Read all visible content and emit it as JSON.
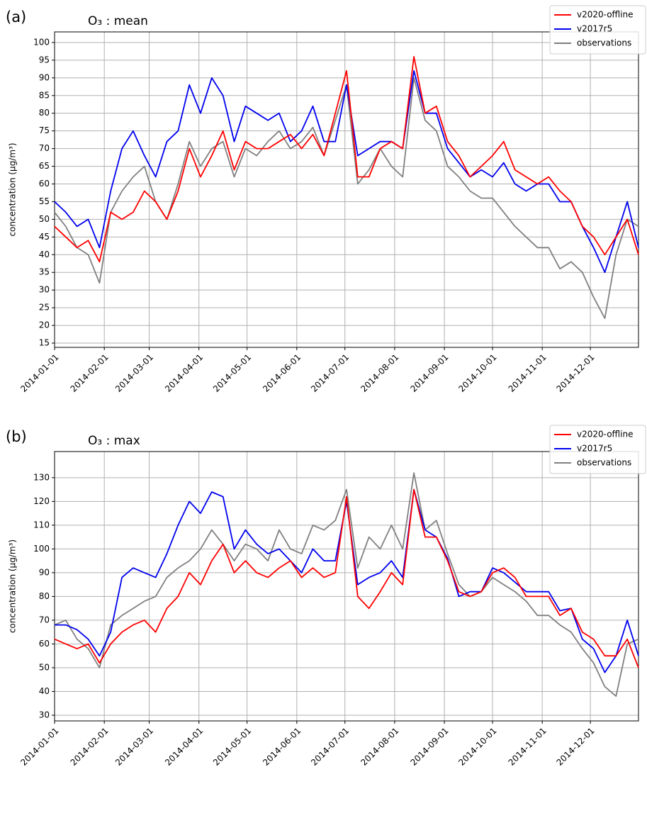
{
  "chart_data": [
    {
      "type": "line",
      "panel_label": "(a)",
      "title": "O₃ : mean",
      "y_label": "concentration (µg/m³)",
      "x": [
        "2014-01-01",
        "2014-01-08",
        "2014-01-15",
        "2014-01-22",
        "2014-01-29",
        "2014-02-05",
        "2014-02-12",
        "2014-02-19",
        "2014-02-26",
        "2014-03-05",
        "2014-03-12",
        "2014-03-19",
        "2014-03-26",
        "2014-04-02",
        "2014-04-09",
        "2014-04-16",
        "2014-04-23",
        "2014-04-30",
        "2014-05-07",
        "2014-05-14",
        "2014-05-21",
        "2014-05-28",
        "2014-06-04",
        "2014-06-11",
        "2014-06-18",
        "2014-06-25",
        "2014-07-02",
        "2014-07-09",
        "2014-07-16",
        "2014-07-23",
        "2014-07-30",
        "2014-08-06",
        "2014-08-13",
        "2014-08-20",
        "2014-08-27",
        "2014-09-03",
        "2014-09-10",
        "2014-09-17",
        "2014-09-24",
        "2014-10-01",
        "2014-10-08",
        "2014-10-15",
        "2014-10-22",
        "2014-10-29",
        "2014-11-05",
        "2014-11-12",
        "2014-11-19",
        "2014-11-26",
        "2014-12-03",
        "2014-12-10",
        "2014-12-17",
        "2014-12-24",
        "2014-12-31"
      ],
      "series": [
        {
          "name": "v2020-offline",
          "color": "#ff0000",
          "values": [
            48,
            45,
            42,
            44,
            38,
            52,
            50,
            52,
            58,
            55,
            50,
            58,
            70,
            62,
            68,
            75,
            64,
            72,
            70,
            70,
            72,
            74,
            70,
            74,
            68,
            80,
            92,
            62,
            62,
            70,
            72,
            70,
            96,
            80,
            82,
            72,
            68,
            62,
            65,
            68,
            72,
            64,
            62,
            60,
            62,
            58,
            55,
            48,
            45,
            40,
            45,
            50,
            40
          ]
        },
        {
          "name": "v2017r5",
          "color": "#0000ee",
          "values": [
            55,
            52,
            48,
            50,
            42,
            58,
            70,
            75,
            68,
            62,
            72,
            75,
            88,
            80,
            90,
            85,
            72,
            82,
            80,
            78,
            80,
            72,
            75,
            82,
            72,
            72,
            88,
            68,
            70,
            72,
            72,
            70,
            92,
            80,
            80,
            70,
            66,
            62,
            64,
            62,
            66,
            60,
            58,
            60,
            60,
            55,
            55,
            48,
            42,
            35,
            45,
            55,
            42
          ]
        },
        {
          "name": "observations",
          "color": "#808080",
          "values": [
            52,
            48,
            42,
            40,
            32,
            52,
            58,
            62,
            65,
            55,
            50,
            60,
            72,
            65,
            70,
            72,
            62,
            70,
            68,
            72,
            75,
            70,
            72,
            76,
            68,
            78,
            88,
            60,
            64,
            70,
            65,
            62,
            90,
            78,
            75,
            65,
            62,
            58,
            56,
            56,
            52,
            48,
            45,
            42,
            42,
            36,
            38,
            35,
            28,
            22,
            40,
            50,
            48
          ]
        }
      ],
      "xlim": [
        "2014-01-01",
        "2014-12-31"
      ],
      "xticks": [
        "2014-01-01",
        "2014-02-01",
        "2014-03-01",
        "2014-04-01",
        "2014-05-01",
        "2014-06-01",
        "2014-07-01",
        "2014-08-01",
        "2014-09-01",
        "2014-10-01",
        "2014-11-01",
        "2014-12-01"
      ],
      "ylim": [
        13.8,
        103
      ],
      "yticks": [
        15,
        20,
        25,
        30,
        35,
        40,
        45,
        50,
        55,
        60,
        65,
        70,
        75,
        80,
        85,
        90,
        95,
        100
      ],
      "grid": true,
      "legend": "upper right"
    },
    {
      "type": "line",
      "panel_label": "(b)",
      "title": "O₃ : max",
      "y_label": "concentration (µg/m³)",
      "x": [
        "2014-01-01",
        "2014-01-08",
        "2014-01-15",
        "2014-01-22",
        "2014-01-29",
        "2014-02-05",
        "2014-02-12",
        "2014-02-19",
        "2014-02-26",
        "2014-03-05",
        "2014-03-12",
        "2014-03-19",
        "2014-03-26",
        "2014-04-02",
        "2014-04-09",
        "2014-04-16",
        "2014-04-23",
        "2014-04-30",
        "2014-05-07",
        "2014-05-14",
        "2014-05-21",
        "2014-05-28",
        "2014-06-04",
        "2014-06-11",
        "2014-06-18",
        "2014-06-25",
        "2014-07-02",
        "2014-07-09",
        "2014-07-16",
        "2014-07-23",
        "2014-07-30",
        "2014-08-06",
        "2014-08-13",
        "2014-08-20",
        "2014-08-27",
        "2014-09-03",
        "2014-09-10",
        "2014-09-17",
        "2014-09-24",
        "2014-10-01",
        "2014-10-08",
        "2014-10-15",
        "2014-10-22",
        "2014-10-29",
        "2014-11-05",
        "2014-11-12",
        "2014-11-19",
        "2014-11-26",
        "2014-12-03",
        "2014-12-10",
        "2014-12-17",
        "2014-12-24",
        "2014-12-31"
      ],
      "series": [
        {
          "name": "v2020-offline",
          "color": "#ff0000",
          "values": [
            62,
            60,
            58,
            60,
            52,
            60,
            65,
            68,
            70,
            65,
            75,
            80,
            90,
            85,
            95,
            102,
            90,
            95,
            90,
            88,
            92,
            95,
            88,
            92,
            88,
            90,
            122,
            80,
            75,
            82,
            90,
            85,
            125,
            105,
            105,
            95,
            82,
            80,
            82,
            90,
            92,
            88,
            80,
            80,
            80,
            72,
            75,
            65,
            62,
            55,
            55,
            62,
            50
          ]
        },
        {
          "name": "v2017r5",
          "color": "#0000ee",
          "values": [
            68,
            68,
            66,
            62,
            55,
            65,
            88,
            92,
            90,
            88,
            98,
            110,
            120,
            115,
            124,
            122,
            100,
            108,
            102,
            98,
            100,
            95,
            90,
            100,
            95,
            95,
            120,
            85,
            88,
            90,
            95,
            88,
            125,
            108,
            105,
            96,
            80,
            82,
            82,
            92,
            90,
            86,
            82,
            82,
            82,
            74,
            75,
            62,
            58,
            48,
            55,
            70,
            55
          ]
        },
        {
          "name": "observations",
          "color": "#808080",
          "values": [
            68,
            70,
            62,
            58,
            50,
            68,
            72,
            75,
            78,
            80,
            88,
            92,
            95,
            100,
            108,
            102,
            95,
            102,
            100,
            95,
            108,
            100,
            98,
            110,
            108,
            112,
            125,
            92,
            105,
            100,
            110,
            100,
            132,
            108,
            112,
            98,
            85,
            80,
            82,
            88,
            85,
            82,
            78,
            72,
            72,
            68,
            65,
            58,
            52,
            42,
            38,
            60,
            62
          ]
        }
      ],
      "xlim": [
        "2014-01-01",
        "2014-12-31"
      ],
      "xticks": [
        "2014-01-01",
        "2014-02-01",
        "2014-03-01",
        "2014-04-01",
        "2014-05-01",
        "2014-06-01",
        "2014-07-01",
        "2014-08-01",
        "2014-09-01",
        "2014-10-01",
        "2014-11-01",
        "2014-12-01"
      ],
      "ylim": [
        27.6,
        141
      ],
      "yticks": [
        30,
        40,
        50,
        60,
        70,
        80,
        90,
        100,
        110,
        120,
        130
      ],
      "grid": true,
      "legend": "upper right"
    }
  ]
}
